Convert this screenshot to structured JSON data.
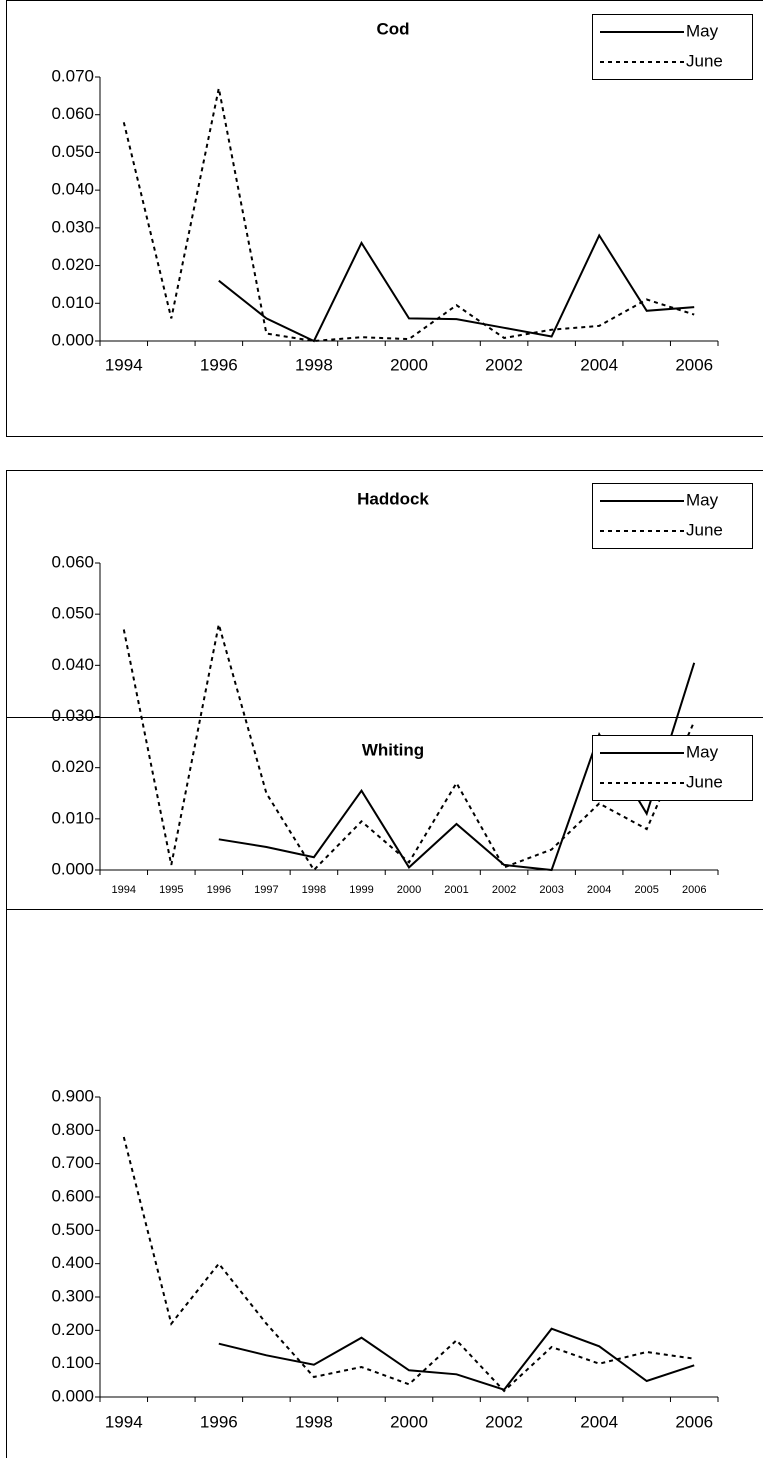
{
  "chart_data": [
    {
      "type": "line",
      "title": "Cod",
      "categories": [
        "1994",
        null,
        "1996",
        null,
        "1998",
        null,
        "2000",
        null,
        "2002",
        null,
        "2004",
        null,
        "2006"
      ],
      "series": [
        {
          "name": "May",
          "color": "#000000",
          "line_style": "solid",
          "values": [
            null,
            null,
            0.016,
            0.006,
            0.0,
            0.026,
            0.006,
            0.0058,
            0.0035,
            0.0012,
            0.028,
            0.008,
            0.009
          ]
        },
        {
          "name": "June",
          "color": "#000000",
          "line_style": "dashed",
          "values": [
            0.058,
            0.006,
            0.067,
            0.002,
            0.0,
            0.001,
            0.0005,
            0.0095,
            0.0008,
            0.003,
            0.004,
            0.011,
            0.007
          ]
        }
      ],
      "ylim": [
        0,
        0.07
      ],
      "yticks": [
        {
          "value": 0,
          "label": "0.000"
        },
        {
          "value": 0.01,
          "label": "0.010"
        },
        {
          "value": 0.02,
          "label": "0.020"
        },
        {
          "value": 0.03,
          "label": "0.030"
        },
        {
          "value": 0.04,
          "label": "0.040"
        },
        {
          "value": 0.05,
          "label": "0.050"
        },
        {
          "value": 0.06,
          "label": "0.060"
        },
        {
          "value": 0.07,
          "label": "0.070"
        }
      ],
      "legend": "top-right"
    },
    {
      "type": "line",
      "title": "Haddock",
      "categories": [
        "1994",
        "1995",
        "1996",
        "1997",
        "1998",
        "1999",
        "2000",
        "2001",
        "2002",
        "2003",
        "2004",
        "2005",
        "2006"
      ],
      "series": [
        {
          "name": "May",
          "color": "#000000",
          "line_style": "solid",
          "values": [
            null,
            null,
            0.006,
            0.0045,
            0.0025,
            0.0155,
            0.0005,
            0.009,
            0.001,
            0.0,
            0.0265,
            0.011,
            0.0405
          ]
        },
        {
          "name": "June",
          "color": "#000000",
          "line_style": "dashed",
          "values": [
            0.047,
            0.001,
            0.048,
            0.015,
            0.0,
            0.0095,
            0.0015,
            0.017,
            0.0005,
            0.004,
            0.013,
            0.008,
            0.029
          ]
        }
      ],
      "ylim": [
        0,
        0.06
      ],
      "yticks": [
        {
          "value": 0,
          "label": "0.000"
        },
        {
          "value": 0.01,
          "label": "0.010"
        },
        {
          "value": 0.02,
          "label": "0.020"
        },
        {
          "value": 0.03,
          "label": "0.030"
        },
        {
          "value": 0.04,
          "label": "0.040"
        },
        {
          "value": 0.05,
          "label": "0.050"
        },
        {
          "value": 0.06,
          "label": "0.060"
        }
      ],
      "legend": "top-right"
    },
    {
      "type": "line",
      "title": "Whiting",
      "categories": [
        "1994",
        null,
        "1996",
        null,
        "1998",
        null,
        "2000",
        null,
        "2002",
        null,
        "2004",
        null,
        "2006"
      ],
      "series": [
        {
          "name": "May",
          "color": "#000000",
          "line_style": "solid",
          "values": [
            null,
            null,
            0.16,
            0.125,
            0.097,
            0.178,
            0.08,
            0.068,
            0.022,
            0.205,
            0.152,
            0.048,
            0.095
          ]
        },
        {
          "name": "June",
          "color": "#000000",
          "line_style": "dashed",
          "values": [
            0.78,
            0.22,
            0.4,
            0.22,
            0.06,
            0.09,
            0.038,
            0.17,
            0.018,
            0.15,
            0.1,
            0.135,
            0.115
          ]
        }
      ],
      "ylim": [
        0,
        0.9
      ],
      "yticks": [
        {
          "value": 0,
          "label": "0.000"
        },
        {
          "value": 0.1,
          "label": "0.100"
        },
        {
          "value": 0.2,
          "label": "0.200"
        },
        {
          "value": 0.3,
          "label": "0.300"
        },
        {
          "value": 0.4,
          "label": "0.400"
        },
        {
          "value": 0.5,
          "label": "0.500"
        },
        {
          "value": 0.6,
          "label": "0.600"
        },
        {
          "value": 0.7,
          "label": "0.700"
        },
        {
          "value": 0.8,
          "label": "0.800"
        },
        {
          "value": 0.9,
          "label": "0.900"
        }
      ],
      "legend": "top-right"
    }
  ]
}
